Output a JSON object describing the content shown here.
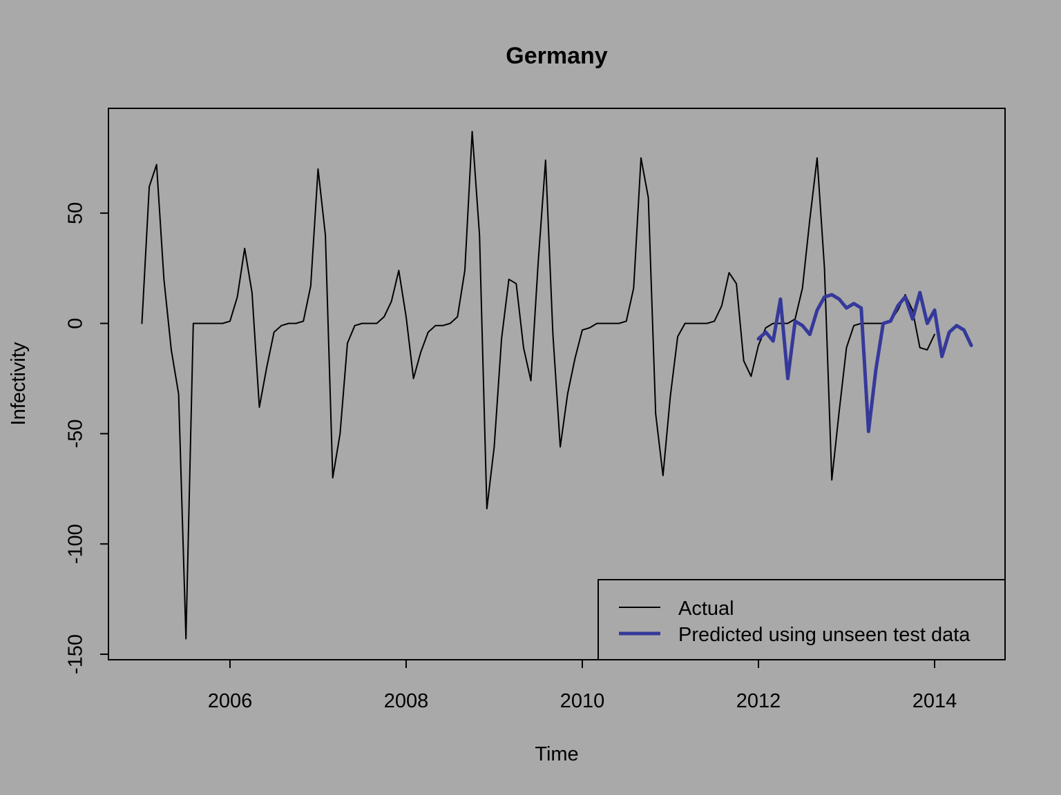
{
  "chart_data": {
    "type": "line",
    "title": "Germany",
    "xlabel": "Time",
    "ylabel": "Infectivity",
    "xlim": [
      2004.62,
      2014.8
    ],
    "ylim": [
      -152.5,
      97.5
    ],
    "x_ticks": [
      2006,
      2008,
      2010,
      2012,
      2014
    ],
    "y_ticks": [
      -150,
      -100,
      -50,
      0,
      50
    ],
    "grid": false,
    "legend_position": "bottom-right",
    "colors": {
      "background": "#a9a9a9",
      "actual": "#000000",
      "predicted": "#35399a"
    },
    "series": [
      {
        "name": "Actual",
        "start": 2005.0,
        "step": 0.08333,
        "values": [
          0,
          62,
          72,
          20,
          -12,
          -32,
          -143,
          0,
          0,
          0,
          0,
          0,
          1,
          12,
          34,
          14,
          -38,
          -20,
          -4,
          -1,
          0,
          0,
          1,
          17,
          70,
          40,
          -70,
          -50,
          -9,
          -1,
          0,
          0,
          0,
          3,
          10,
          24,
          3,
          -25,
          -13,
          -4,
          -1,
          -1,
          0,
          3,
          24,
          87,
          40,
          -84,
          -56,
          -7,
          20,
          18,
          -11,
          -26,
          28,
          74,
          -5,
          -56,
          -32,
          -16,
          -3,
          -2,
          0,
          0,
          0,
          0,
          1,
          16,
          75,
          57,
          -41,
          -69,
          -33,
          -6,
          0,
          0,
          0,
          0,
          1,
          8,
          23,
          18,
          -17,
          -24,
          -10,
          -2,
          0,
          0,
          0,
          2,
          16,
          47,
          75,
          25,
          -71,
          -40,
          -11,
          -1,
          0,
          0,
          0,
          0,
          1,
          6,
          13,
          6,
          -11,
          -12,
          -5
        ]
      },
      {
        "name": "Predicted using unseen test data",
        "start": 2012.0,
        "step": 0.08333,
        "values": [
          -7,
          -4,
          -8,
          11,
          -25,
          1,
          -1,
          -5,
          6,
          12,
          13,
          11,
          7,
          9,
          7,
          -49,
          -21,
          0,
          1,
          8,
          12,
          2,
          14,
          0,
          6,
          -15,
          -4,
          -1,
          -3,
          -10
        ]
      }
    ]
  }
}
